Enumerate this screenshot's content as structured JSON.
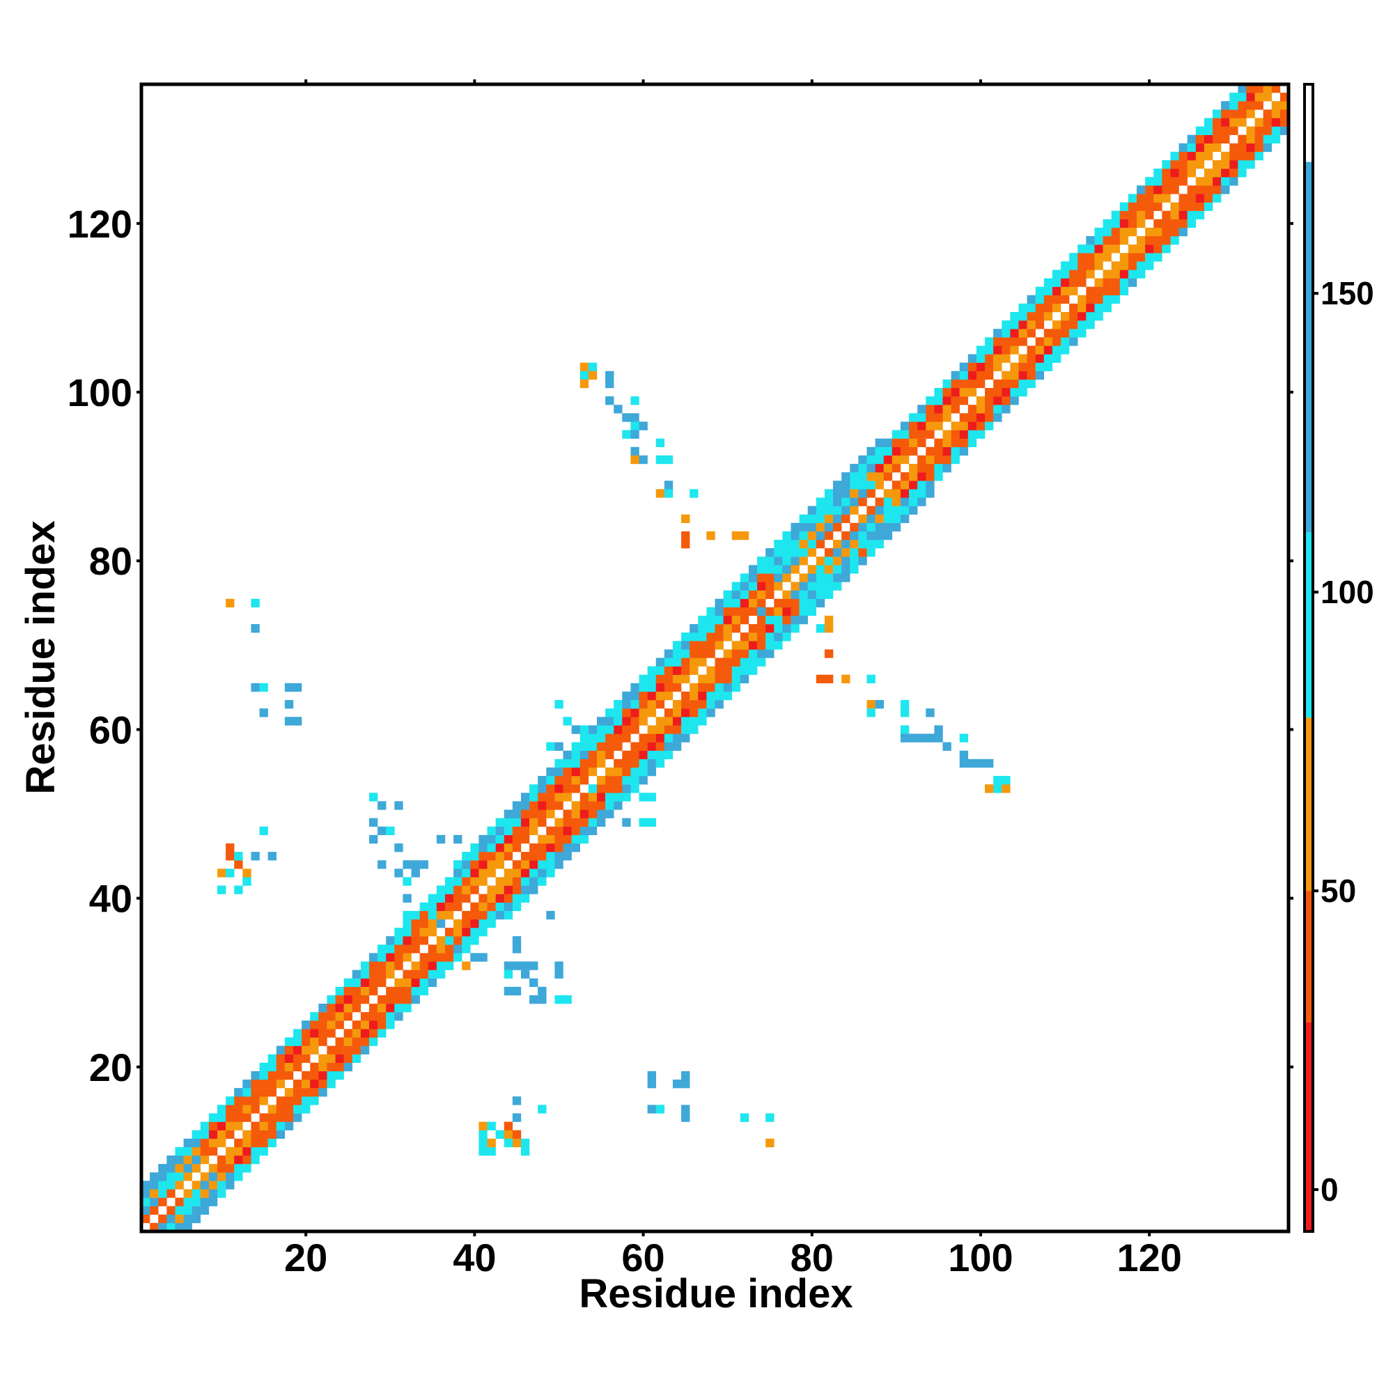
{
  "chart_data": {
    "type": "heatmap",
    "title": "",
    "xlabel": "Residue index",
    "ylabel": "Residue index",
    "xlim": [
      1,
      136
    ],
    "ylim": [
      1,
      136
    ],
    "x_ticks": [
      20,
      40,
      60,
      80,
      100,
      120
    ],
    "y_ticks": [
      20,
      40,
      60,
      80,
      100,
      120
    ],
    "colorbar": {
      "range": [
        -7,
        185
      ],
      "ticks": [
        0,
        50,
        100,
        150
      ],
      "bands": [
        {
          "from": -7,
          "to": 28,
          "color": "#ee1c1c"
        },
        {
          "from": 28,
          "to": 50,
          "color": "#f45a0a"
        },
        {
          "from": 50,
          "to": 79,
          "color": "#f6980c"
        },
        {
          "from": 79,
          "to": 110,
          "color": "#1ee6ee"
        },
        {
          "from": 110,
          "to": 172,
          "color": "#3ea8d8"
        },
        {
          "from": 172,
          "to": 185,
          "color": "#ffffff"
        }
      ]
    },
    "diagonal_segments": [
      {
        "from": 1,
        "to": 8,
        "kind": "beta",
        "halfwidth": 5
      },
      {
        "from": 8,
        "to": 38,
        "kind": "helix",
        "halfwidth": 5
      },
      {
        "from": 38,
        "to": 56,
        "kind": "helix",
        "halfwidth": 6
      },
      {
        "from": 56,
        "to": 76,
        "kind": "helix",
        "halfwidth": 6
      },
      {
        "from": 76,
        "to": 88,
        "kind": "beta",
        "halfwidth": 6
      },
      {
        "from": 88,
        "to": 136,
        "kind": "helix",
        "halfwidth": 5
      }
    ],
    "contacts": [
      {
        "x": 10,
        "y": 43,
        "v": 65
      },
      {
        "x": 11,
        "y": 43,
        "v": 90
      },
      {
        "x": 12,
        "y": 44,
        "v": 30
      },
      {
        "x": 11,
        "y": 45,
        "v": 35
      },
      {
        "x": 12,
        "y": 45,
        "v": 95
      },
      {
        "x": 13,
        "y": 42,
        "v": 92
      },
      {
        "x": 10,
        "y": 41,
        "v": 90
      },
      {
        "x": 12,
        "y": 41,
        "v": 95
      },
      {
        "x": 13,
        "y": 43,
        "v": 60
      },
      {
        "x": 14,
        "y": 45,
        "v": 120
      },
      {
        "x": 16,
        "y": 45,
        "v": 130
      },
      {
        "x": 11,
        "y": 46,
        "v": 35
      },
      {
        "x": 15,
        "y": 48,
        "v": 100
      },
      {
        "x": 11,
        "y": 75,
        "v": 65
      },
      {
        "x": 14,
        "y": 75,
        "v": 95
      },
      {
        "x": 14,
        "y": 72,
        "v": 120
      },
      {
        "x": 14,
        "y": 65,
        "v": 120
      },
      {
        "x": 15,
        "y": 65,
        "v": 95
      },
      {
        "x": 15,
        "y": 62,
        "v": 120
      },
      {
        "x": 18,
        "y": 65,
        "v": 130
      },
      {
        "x": 19,
        "y": 65,
        "v": 120
      },
      {
        "x": 18,
        "y": 63,
        "v": 120
      },
      {
        "x": 18,
        "y": 61,
        "v": 130
      },
      {
        "x": 19,
        "y": 61,
        "v": 120
      },
      {
        "x": 28,
        "y": 52,
        "v": 95
      },
      {
        "x": 29,
        "y": 51,
        "v": 120
      },
      {
        "x": 31,
        "y": 51,
        "v": 130
      },
      {
        "x": 28,
        "y": 49,
        "v": 130
      },
      {
        "x": 29,
        "y": 48,
        "v": 120
      },
      {
        "x": 28,
        "y": 47,
        "v": 130
      },
      {
        "x": 30,
        "y": 48,
        "v": 95
      },
      {
        "x": 31,
        "y": 46,
        "v": 130
      },
      {
        "x": 29,
        "y": 44,
        "v": 120
      },
      {
        "x": 31,
        "y": 43,
        "v": 120
      },
      {
        "x": 32,
        "y": 44,
        "v": 120
      },
      {
        "x": 33,
        "y": 44,
        "v": 130
      },
      {
        "x": 34,
        "y": 44,
        "v": 130
      },
      {
        "x": 32,
        "y": 42,
        "v": 95
      },
      {
        "x": 33,
        "y": 43,
        "v": 120
      },
      {
        "x": 32,
        "y": 40,
        "v": 130
      },
      {
        "x": 36,
        "y": 47,
        "v": 130
      },
      {
        "x": 32,
        "y": 38,
        "v": 95
      },
      {
        "x": 35,
        "y": 38,
        "v": 95
      },
      {
        "x": 36,
        "y": 37,
        "v": 120
      },
      {
        "x": 37,
        "y": 35,
        "v": 95
      },
      {
        "x": 38,
        "y": 34,
        "v": 120
      },
      {
        "x": 40,
        "y": 33,
        "v": 130
      },
      {
        "x": 39,
        "y": 34,
        "v": 95
      },
      {
        "x": 41,
        "y": 33,
        "v": 120
      },
      {
        "x": 44,
        "y": 32,
        "v": 120
      },
      {
        "x": 45,
        "y": 32,
        "v": 130
      },
      {
        "x": 46,
        "y": 32,
        "v": 120
      },
      {
        "x": 47,
        "y": 32,
        "v": 120
      },
      {
        "x": 45,
        "y": 35,
        "v": 130
      },
      {
        "x": 45,
        "y": 34,
        "v": 120
      },
      {
        "x": 44,
        "y": 31,
        "v": 95
      },
      {
        "x": 46,
        "y": 31,
        "v": 120
      },
      {
        "x": 47,
        "y": 30,
        "v": 120
      },
      {
        "x": 44,
        "y": 29,
        "v": 120
      },
      {
        "x": 45,
        "y": 29,
        "v": 130
      },
      {
        "x": 47,
        "y": 28,
        "v": 130
      },
      {
        "x": 48,
        "y": 28,
        "v": 120
      },
      {
        "x": 48,
        "y": 29,
        "v": 130
      },
      {
        "x": 50,
        "y": 28,
        "v": 95
      },
      {
        "x": 51,
        "y": 28,
        "v": 95
      },
      {
        "x": 50,
        "y": 31,
        "v": 130
      },
      {
        "x": 50,
        "y": 32,
        "v": 120
      },
      {
        "x": 39,
        "y": 32,
        "v": 65
      },
      {
        "x": 49,
        "y": 38,
        "v": 130
      },
      {
        "x": 38,
        "y": 47,
        "v": 120
      },
      {
        "x": 41,
        "y": 10,
        "v": 95
      },
      {
        "x": 42,
        "y": 10,
        "v": 95
      },
      {
        "x": 41,
        "y": 11,
        "v": 95
      },
      {
        "x": 42,
        "y": 11,
        "v": 65
      },
      {
        "x": 41,
        "y": 12,
        "v": 95
      },
      {
        "x": 43,
        "y": 12,
        "v": 95
      },
      {
        "x": 41,
        "y": 13,
        "v": 65
      },
      {
        "x": 42,
        "y": 13,
        "v": 95
      },
      {
        "x": 44,
        "y": 12,
        "v": 65
      },
      {
        "x": 44,
        "y": 13,
        "v": 30
      },
      {
        "x": 45,
        "y": 12,
        "v": 30
      },
      {
        "x": 45,
        "y": 11,
        "v": 65
      },
      {
        "x": 46,
        "y": 11,
        "v": 95
      },
      {
        "x": 46,
        "y": 10,
        "v": 95
      },
      {
        "x": 44,
        "y": 11,
        "v": 95
      },
      {
        "x": 45,
        "y": 14,
        "v": 120
      },
      {
        "x": 45,
        "y": 16,
        "v": 120
      },
      {
        "x": 48,
        "y": 15,
        "v": 95
      },
      {
        "x": 61,
        "y": 19,
        "v": 120
      },
      {
        "x": 61,
        "y": 18,
        "v": 130
      },
      {
        "x": 64,
        "y": 18,
        "v": 120
      },
      {
        "x": 65,
        "y": 18,
        "v": 130
      },
      {
        "x": 65,
        "y": 19,
        "v": 130
      },
      {
        "x": 61,
        "y": 15,
        "v": 120
      },
      {
        "x": 62,
        "y": 15,
        "v": 95
      },
      {
        "x": 65,
        "y": 15,
        "v": 120
      },
      {
        "x": 65,
        "y": 14,
        "v": 130
      },
      {
        "x": 72,
        "y": 14,
        "v": 95
      },
      {
        "x": 75,
        "y": 14,
        "v": 95
      },
      {
        "x": 75,
        "y": 11,
        "v": 65
      },
      {
        "x": 53,
        "y": 103,
        "v": 65
      },
      {
        "x": 54,
        "y": 103,
        "v": 95
      },
      {
        "x": 53,
        "y": 102,
        "v": 95
      },
      {
        "x": 54,
        "y": 102,
        "v": 65
      },
      {
        "x": 53,
        "y": 101,
        "v": 65
      },
      {
        "x": 56,
        "y": 102,
        "v": 120
      },
      {
        "x": 56,
        "y": 101,
        "v": 130
      },
      {
        "x": 56,
        "y": 99,
        "v": 130
      },
      {
        "x": 57,
        "y": 98,
        "v": 120
      },
      {
        "x": 59,
        "y": 99,
        "v": 95
      },
      {
        "x": 58,
        "y": 97,
        "v": 120
      },
      {
        "x": 59,
        "y": 97,
        "v": 130
      },
      {
        "x": 59,
        "y": 96,
        "v": 95
      },
      {
        "x": 60,
        "y": 96,
        "v": 120
      },
      {
        "x": 58,
        "y": 95,
        "v": 95
      },
      {
        "x": 59,
        "y": 95,
        "v": 120
      },
      {
        "x": 59,
        "y": 93,
        "v": 120
      },
      {
        "x": 59,
        "y": 92,
        "v": 65
      },
      {
        "x": 60,
        "y": 92,
        "v": 120
      },
      {
        "x": 62,
        "y": 94,
        "v": 95
      },
      {
        "x": 62,
        "y": 92,
        "v": 95
      },
      {
        "x": 63,
        "y": 92,
        "v": 95
      },
      {
        "x": 62,
        "y": 88,
        "v": 65
      },
      {
        "x": 63,
        "y": 88,
        "v": 95
      },
      {
        "x": 63,
        "y": 89,
        "v": 120
      },
      {
        "x": 66,
        "y": 88,
        "v": 95
      },
      {
        "x": 65,
        "y": 85,
        "v": 65
      },
      {
        "x": 65,
        "y": 83,
        "v": 30
      },
      {
        "x": 65,
        "y": 82,
        "v": 30
      },
      {
        "x": 68,
        "y": 83,
        "v": 65
      },
      {
        "x": 71,
        "y": 83,
        "v": 65
      },
      {
        "x": 72,
        "y": 83,
        "v": 65
      },
      {
        "x": 83,
        "y": 82,
        "v": 65
      },
      {
        "x": 86,
        "y": 81,
        "v": 30
      },
      {
        "x": 82,
        "y": 73,
        "v": 65
      },
      {
        "x": 81,
        "y": 72,
        "v": 95
      },
      {
        "x": 82,
        "y": 72,
        "v": 65
      },
      {
        "x": 82,
        "y": 69,
        "v": 30
      },
      {
        "x": 81,
        "y": 66,
        "v": 30
      },
      {
        "x": 82,
        "y": 66,
        "v": 30
      },
      {
        "x": 84,
        "y": 66,
        "v": 65
      },
      {
        "x": 87,
        "y": 66,
        "v": 95
      },
      {
        "x": 87,
        "y": 63,
        "v": 65
      },
      {
        "x": 88,
        "y": 63,
        "v": 120
      },
      {
        "x": 87,
        "y": 62,
        "v": 95
      },
      {
        "x": 91,
        "y": 63,
        "v": 95
      },
      {
        "x": 91,
        "y": 62,
        "v": 95
      },
      {
        "x": 94,
        "y": 62,
        "v": 120
      },
      {
        "x": 91,
        "y": 60,
        "v": 95
      },
      {
        "x": 91,
        "y": 59,
        "v": 130
      },
      {
        "x": 92,
        "y": 59,
        "v": 120
      },
      {
        "x": 93,
        "y": 59,
        "v": 120
      },
      {
        "x": 94,
        "y": 59,
        "v": 130
      },
      {
        "x": 95,
        "y": 60,
        "v": 120
      },
      {
        "x": 95,
        "y": 59,
        "v": 120
      },
      {
        "x": 96,
        "y": 58,
        "v": 130
      },
      {
        "x": 98,
        "y": 59,
        "v": 95
      },
      {
        "x": 98,
        "y": 57,
        "v": 120
      },
      {
        "x": 98,
        "y": 56,
        "v": 130
      },
      {
        "x": 99,
        "y": 56,
        "v": 130
      },
      {
        "x": 100,
        "y": 56,
        "v": 120
      },
      {
        "x": 101,
        "y": 56,
        "v": 120
      },
      {
        "x": 102,
        "y": 54,
        "v": 95
      },
      {
        "x": 102,
        "y": 53,
        "v": 95
      },
      {
        "x": 103,
        "y": 53,
        "v": 65
      },
      {
        "x": 103,
        "y": 54,
        "v": 95
      },
      {
        "x": 101,
        "y": 53,
        "v": 65
      },
      {
        "x": 54,
        "y": 53,
        "v": 95
      },
      {
        "x": 56,
        "y": 50,
        "v": 130
      },
      {
        "x": 57,
        "y": 51,
        "v": 120
      },
      {
        "x": 58,
        "y": 49,
        "v": 120
      },
      {
        "x": 60,
        "y": 49,
        "v": 95
      },
      {
        "x": 61,
        "y": 49,
        "v": 95
      },
      {
        "x": 60,
        "y": 52,
        "v": 95
      },
      {
        "x": 61,
        "y": 52,
        "v": 95
      },
      {
        "x": 58,
        "y": 53,
        "v": 130
      },
      {
        "x": 49,
        "y": 58,
        "v": 95
      },
      {
        "x": 50,
        "y": 58,
        "v": 120
      },
      {
        "x": 50,
        "y": 56,
        "v": 95
      },
      {
        "x": 51,
        "y": 61,
        "v": 95
      },
      {
        "x": 52,
        "y": 60,
        "v": 120
      },
      {
        "x": 53,
        "y": 60,
        "v": 95
      },
      {
        "x": 50,
        "y": 63,
        "v": 95
      },
      {
        "x": 53,
        "y": 57,
        "v": 120
      },
      {
        "x": 75,
        "y": 73,
        "v": 95
      },
      {
        "x": 76,
        "y": 73,
        "v": 95
      },
      {
        "x": 74,
        "y": 74,
        "v": 120
      },
      {
        "x": 73,
        "y": 77,
        "v": 95
      },
      {
        "x": 72,
        "y": 78,
        "v": 95
      }
    ]
  }
}
